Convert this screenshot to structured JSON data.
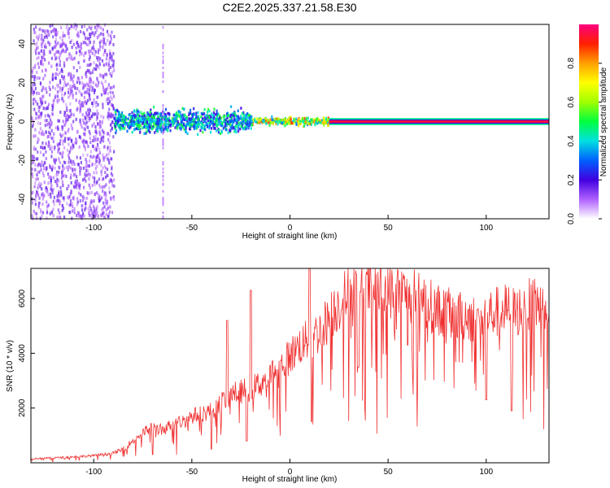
{
  "figure": {
    "title": "C2E2.2025.337.21.58.E30"
  },
  "colors": {
    "snr_line": "#f03030",
    "spectrum_core": "#e8204a",
    "spectrum_mid": "#40d060",
    "spectrum_low": "#6010e0",
    "spectrum_faint": "#c9a8f5"
  },
  "chart_data": [
    {
      "type": "heatmap",
      "xlabel": "Height of straight line (km)",
      "ylabel": "Frequency (Hz)",
      "xlim": [
        -132,
        132
      ],
      "ylim": [
        -50,
        50
      ],
      "xticks": [
        -100,
        -50,
        0,
        50,
        100
      ],
      "yticks": [
        -40,
        -20,
        0,
        20,
        40
      ],
      "colorbar": {
        "label": "Normalized spectral amplitude",
        "range": [
          0,
          1
        ],
        "ticks": [
          0.0,
          0.2,
          0.4,
          0.6,
          0.8
        ],
        "tick_labels": [
          "0.0",
          "0.2",
          "0.4",
          "0.6",
          "0.8"
        ],
        "colormap": [
          "#ffffff",
          "#b060ff",
          "#4000e0",
          "#0060ff",
          "#00e0e0",
          "#00ff40",
          "#a0ff00",
          "#ffff00",
          "#ffa000",
          "#ff2000",
          "#ff0080"
        ]
      },
      "regions": [
        {
          "x_range": [
            -132,
            -90
          ],
          "freq_range": [
            -50,
            50
          ],
          "amplitude": 0.15,
          "description_type": "scattered noise"
        },
        {
          "x_range": [
            -90,
            -20
          ],
          "freq_range": [
            -8,
            8
          ],
          "amplitude": 0.45
        },
        {
          "x_range": [
            -20,
            20
          ],
          "freq_range": [
            -3,
            3
          ],
          "amplitude": 0.75
        },
        {
          "x_range": [
            20,
            132
          ],
          "freq_range": [
            -1,
            1
          ],
          "amplitude": 0.95
        }
      ]
    },
    {
      "type": "line",
      "xlabel": "Height of straight line (km)",
      "ylabel": "SNR (10 * v/v)",
      "xlim": [
        -132,
        132
      ],
      "ylim": [
        0,
        7100
      ],
      "xticks": [
        -100,
        -50,
        0,
        50,
        100
      ],
      "yticks": [
        2000,
        4000,
        6000
      ],
      "series": [
        {
          "x": [
            -132,
            -120,
            -110,
            -100,
            -90,
            -85,
            -80,
            -75,
            -70,
            -65,
            -60,
            -55,
            -50,
            -45,
            -40,
            -35,
            -30,
            -25,
            -20,
            -15,
            -10,
            -5,
            0,
            5,
            10,
            15,
            20,
            25,
            30,
            35,
            40,
            45,
            50,
            55,
            60,
            65,
            70,
            75,
            80,
            85,
            90,
            95,
            100,
            105,
            110,
            115,
            120,
            125,
            132
          ],
          "values": [
            150,
            180,
            220,
            260,
            350,
            500,
            800,
            1100,
            1300,
            1200,
            1400,
            1500,
            1700,
            1800,
            1900,
            2200,
            2500,
            2600,
            2700,
            2900,
            3200,
            3500,
            3900,
            4300,
            4500,
            4800,
            5300,
            5800,
            6200,
            6300,
            6350,
            6300,
            6250,
            6200,
            6150,
            6000,
            5800,
            5600,
            5500,
            5300,
            5400,
            5200,
            5400,
            5500,
            5600,
            5500,
            5700,
            5800,
            5900
          ],
          "dips": [
            {
              "x": -70,
              "min": 300
            },
            {
              "x": -40,
              "min": 500
            },
            {
              "x": -22,
              "min": 800
            },
            {
              "x": 11,
              "min": 1500
            },
            {
              "x": 35,
              "min": 3500
            },
            {
              "x": 60,
              "min": 4300
            },
            {
              "x": 100,
              "min": 2300
            },
            {
              "x": 113,
              "min": 1900
            }
          ],
          "spikes": [
            {
              "x": -20,
              "max": 6300
            },
            {
              "x": 10,
              "max": 7100
            },
            {
              "x": -32,
              "max": 5200
            }
          ]
        }
      ]
    }
  ]
}
